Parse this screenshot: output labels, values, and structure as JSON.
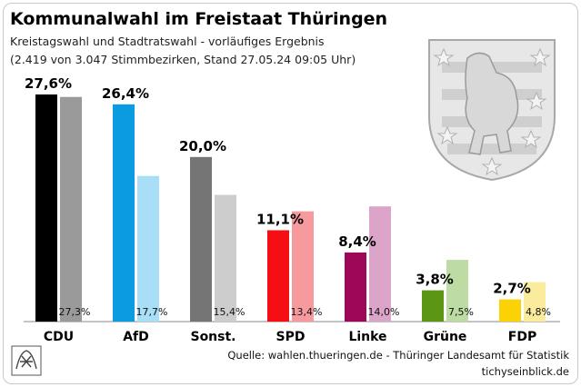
{
  "title": "Kommunalwahl im Freistaat Thüringen",
  "subtitle1": "Kreistagswahl und Stadtratswahl - vorläufiges Ergebnis",
  "subtitle2": "(2.419 von 3.047 Stimmbezirken, Stand 27.05.24 09:05 Uhr)",
  "source": "Quelle: wahlen.thueringen.de - Thüringer Landesamt für Statistik",
  "credit": "tichyseinblick.de",
  "chart_data": {
    "type": "bar",
    "categories": [
      "CDU",
      "AfD",
      "Sonst.",
      "SPD",
      "Linke",
      "Grüne",
      "FDP"
    ],
    "series": [
      {
        "values": [
          27.6,
          26.4,
          20.0,
          11.1,
          8.4,
          3.8,
          2.7
        ],
        "labels": [
          "27,6%",
          "26,4%",
          "20,0%",
          "11,1%",
          "8,4%",
          "3,8%",
          "2,7%"
        ]
      },
      {
        "values": [
          27.3,
          17.7,
          15.4,
          13.4,
          14.0,
          7.5,
          4.8
        ],
        "labels": [
          "27,3%",
          "17,7%",
          "15,4%",
          "13,4%",
          "14,0%",
          "7,5%",
          "4,8%"
        ]
      }
    ],
    "colors_current": [
      "#000000",
      "#0b9be0",
      "#757575",
      "#f50f14",
      "#9e0658",
      "#5b9615",
      "#fad205"
    ],
    "colors_previous": [
      "#9a9a9a",
      "#a8dff7",
      "#cdcdcd",
      "#f79a9e",
      "#dca4c9",
      "#bcdca3",
      "#fbeb9c"
    ],
    "ylim": [
      0,
      30
    ],
    "grid": false,
    "legend": "none"
  }
}
